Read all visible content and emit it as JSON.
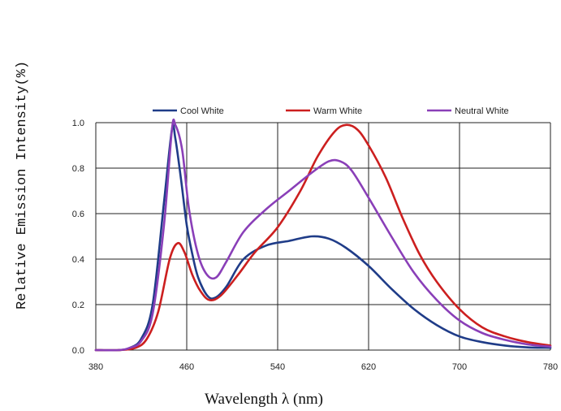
{
  "chart_data": {
    "type": "line",
    "title": "",
    "xlabel": "Wavelength λ (nm)",
    "ylabel": "Relative Emission Intensity(%)",
    "xlim": [
      380,
      780
    ],
    "ylim": [
      0,
      1.0
    ],
    "x_ticks": [
      "380",
      "460",
      "540",
      "620",
      "700",
      "780"
    ],
    "y_ticks": [
      "0.0",
      "0.2",
      "0.4",
      "0.6",
      "0.8",
      "1.0"
    ],
    "grid": true,
    "legend_position": "top",
    "series": [
      {
        "name": "Cool White",
        "color": "#1f3c88",
        "points": [
          [
            380,
            0
          ],
          [
            400,
            0
          ],
          [
            410,
            0.01
          ],
          [
            420,
            0.05
          ],
          [
            430,
            0.2
          ],
          [
            440,
            0.65
          ],
          [
            447,
            0.97
          ],
          [
            450,
            0.93
          ],
          [
            455,
            0.75
          ],
          [
            460,
            0.55
          ],
          [
            465,
            0.42
          ],
          [
            470,
            0.32
          ],
          [
            478,
            0.24
          ],
          [
            485,
            0.23
          ],
          [
            495,
            0.28
          ],
          [
            510,
            0.4
          ],
          [
            530,
            0.46
          ],
          [
            550,
            0.48
          ],
          [
            570,
            0.5
          ],
          [
            585,
            0.49
          ],
          [
            600,
            0.45
          ],
          [
            620,
            0.37
          ],
          [
            640,
            0.27
          ],
          [
            660,
            0.18
          ],
          [
            680,
            0.11
          ],
          [
            700,
            0.06
          ],
          [
            720,
            0.035
          ],
          [
            740,
            0.02
          ],
          [
            760,
            0.012
          ],
          [
            780,
            0.01
          ]
        ]
      },
      {
        "name": "Warm White",
        "color": "#cc1f1f",
        "points": [
          [
            380,
            0
          ],
          [
            400,
            0
          ],
          [
            415,
            0.01
          ],
          [
            425,
            0.05
          ],
          [
            435,
            0.17
          ],
          [
            445,
            0.4
          ],
          [
            452,
            0.47
          ],
          [
            458,
            0.43
          ],
          [
            465,
            0.33
          ],
          [
            472,
            0.26
          ],
          [
            480,
            0.22
          ],
          [
            490,
            0.24
          ],
          [
            505,
            0.33
          ],
          [
            520,
            0.43
          ],
          [
            540,
            0.54
          ],
          [
            560,
            0.7
          ],
          [
            575,
            0.85
          ],
          [
            590,
            0.96
          ],
          [
            600,
            0.99
          ],
          [
            610,
            0.97
          ],
          [
            620,
            0.9
          ],
          [
            635,
            0.76
          ],
          [
            650,
            0.58
          ],
          [
            665,
            0.42
          ],
          [
            680,
            0.3
          ],
          [
            700,
            0.18
          ],
          [
            720,
            0.1
          ],
          [
            740,
            0.06
          ],
          [
            760,
            0.035
          ],
          [
            780,
            0.02
          ]
        ]
      },
      {
        "name": "Neutral White",
        "color": "#8a3fb8",
        "points": [
          [
            380,
            0
          ],
          [
            400,
            0
          ],
          [
            410,
            0.01
          ],
          [
            420,
            0.04
          ],
          [
            430,
            0.16
          ],
          [
            440,
            0.55
          ],
          [
            447,
            0.97
          ],
          [
            450,
            0.99
          ],
          [
            456,
            0.88
          ],
          [
            462,
            0.62
          ],
          [
            470,
            0.42
          ],
          [
            478,
            0.33
          ],
          [
            486,
            0.32
          ],
          [
            495,
            0.39
          ],
          [
            510,
            0.52
          ],
          [
            530,
            0.62
          ],
          [
            550,
            0.7
          ],
          [
            570,
            0.78
          ],
          [
            585,
            0.83
          ],
          [
            595,
            0.83
          ],
          [
            605,
            0.79
          ],
          [
            620,
            0.67
          ],
          [
            640,
            0.5
          ],
          [
            660,
            0.34
          ],
          [
            680,
            0.22
          ],
          [
            700,
            0.13
          ],
          [
            720,
            0.075
          ],
          [
            740,
            0.045
          ],
          [
            760,
            0.025
          ],
          [
            780,
            0.015
          ]
        ]
      }
    ]
  }
}
